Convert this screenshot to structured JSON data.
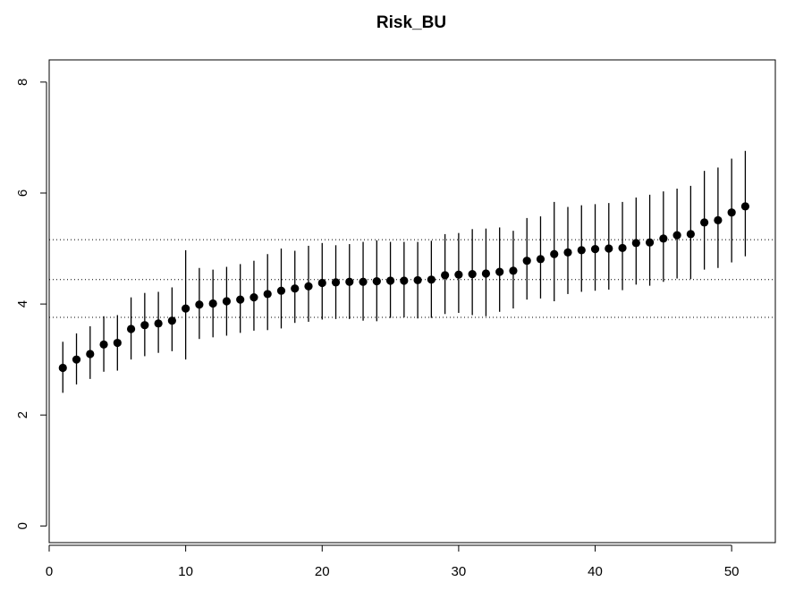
{
  "chart_data": {
    "type": "scatter",
    "title": "Risk_BU",
    "xlabel": "",
    "ylabel": "",
    "xlim": [
      0,
      53.2
    ],
    "ylim": [
      -0.3,
      8.4
    ],
    "x_ticks": [
      0,
      10,
      20,
      30,
      40,
      50
    ],
    "y_ticks": [
      0,
      2,
      4,
      6,
      8
    ],
    "x_tick_labels": [
      "0",
      "10",
      "20",
      "30",
      "40",
      "50"
    ],
    "y_tick_labels": [
      "0",
      "2",
      "4",
      "6",
      "8"
    ],
    "grid": false,
    "reference_lines": [
      3.76,
      4.44,
      5.16
    ],
    "series": [
      {
        "x": [
          1,
          2,
          3,
          4,
          5,
          6,
          7,
          8,
          9,
          10,
          11,
          12,
          13,
          14,
          15,
          16,
          17,
          18,
          19,
          20,
          21,
          22,
          23,
          24,
          25,
          26,
          27,
          28,
          29,
          30,
          31,
          32,
          33,
          34,
          35,
          36,
          37,
          38,
          39,
          40,
          41,
          42,
          43,
          44,
          45,
          46,
          47,
          48,
          49,
          50,
          51
        ],
        "values": [
          2.85,
          3.0,
          3.1,
          3.27,
          3.3,
          3.55,
          3.62,
          3.65,
          3.7,
          3.92,
          3.99,
          4.01,
          4.05,
          4.08,
          4.12,
          4.18,
          4.24,
          4.28,
          4.32,
          4.38,
          4.39,
          4.4,
          4.4,
          4.41,
          4.42,
          4.42,
          4.43,
          4.44,
          4.52,
          4.53,
          4.54,
          4.55,
          4.58,
          4.6,
          4.78,
          4.81,
          4.9,
          4.93,
          4.97,
          4.99,
          5.0,
          5.01,
          5.1,
          5.11,
          5.18,
          5.24,
          5.26,
          5.47,
          5.51,
          5.65,
          5.76
        ],
        "lower": [
          2.4,
          2.55,
          2.65,
          2.78,
          2.8,
          3.0,
          3.06,
          3.12,
          3.15,
          3.0,
          3.37,
          3.4,
          3.43,
          3.48,
          3.52,
          3.53,
          3.56,
          3.66,
          3.68,
          3.72,
          3.73,
          3.73,
          3.7,
          3.69,
          3.75,
          3.76,
          3.74,
          3.75,
          3.82,
          3.84,
          3.8,
          3.78,
          3.86,
          3.92,
          4.08,
          4.1,
          4.05,
          4.18,
          4.22,
          4.24,
          4.26,
          4.25,
          4.35,
          4.33,
          4.4,
          4.46,
          4.45,
          4.62,
          4.65,
          4.75,
          4.86
        ],
        "upper": [
          3.32,
          3.47,
          3.6,
          3.78,
          3.8,
          4.12,
          4.2,
          4.22,
          4.3,
          4.97,
          4.65,
          4.62,
          4.67,
          4.72,
          4.78,
          4.9,
          5.0,
          4.96,
          5.05,
          5.1,
          5.06,
          5.08,
          5.12,
          5.15,
          5.12,
          5.12,
          5.12,
          5.14,
          5.26,
          5.28,
          5.35,
          5.36,
          5.38,
          5.32,
          5.55,
          5.58,
          5.84,
          5.75,
          5.78,
          5.8,
          5.82,
          5.84,
          5.92,
          5.97,
          6.03,
          6.08,
          6.13,
          6.4,
          6.46,
          6.62,
          6.76
        ]
      }
    ]
  }
}
